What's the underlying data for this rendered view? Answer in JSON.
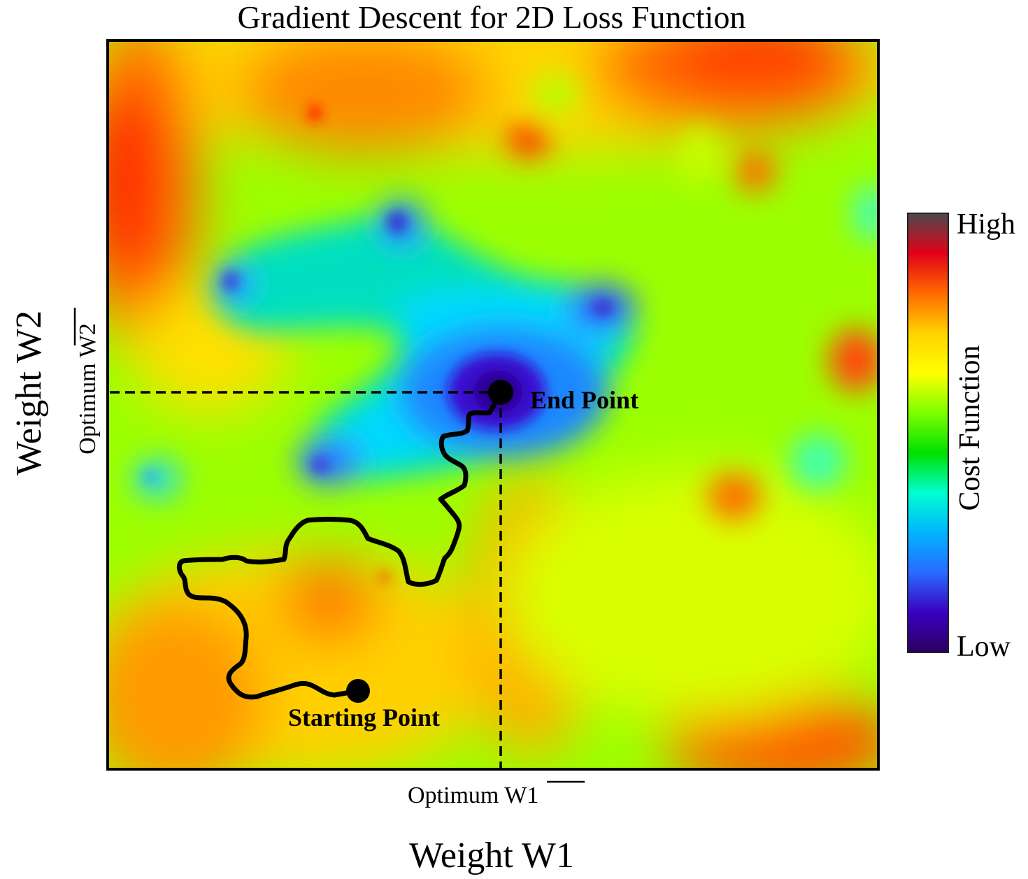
{
  "title": "Gradient Descent for 2D Loss Function",
  "axes": {
    "x_label": "Weight W1",
    "y_label": "Weight W2",
    "x_optimum_prefix": "Optimum",
    "x_optimum_symbol": "W1",
    "y_optimum_prefix": "Optimum",
    "y_optimum_symbol": "W2"
  },
  "points": {
    "end_label": "End Point",
    "start_label": "Starting Point"
  },
  "colorbar": {
    "label": "Cost Function",
    "high_label": "High",
    "low_label": "Low",
    "stops": [
      "#4a4a4a",
      "#e2001a",
      "#ff6a00",
      "#ffd200",
      "#ffff00",
      "#7dff00",
      "#00e000",
      "#00ffd0",
      "#00b4ff",
      "#2a6aff",
      "#3a00c0",
      "#2a0060"
    ]
  },
  "colors": {
    "surface_base": "#9cff00",
    "path": "#000000"
  }
}
